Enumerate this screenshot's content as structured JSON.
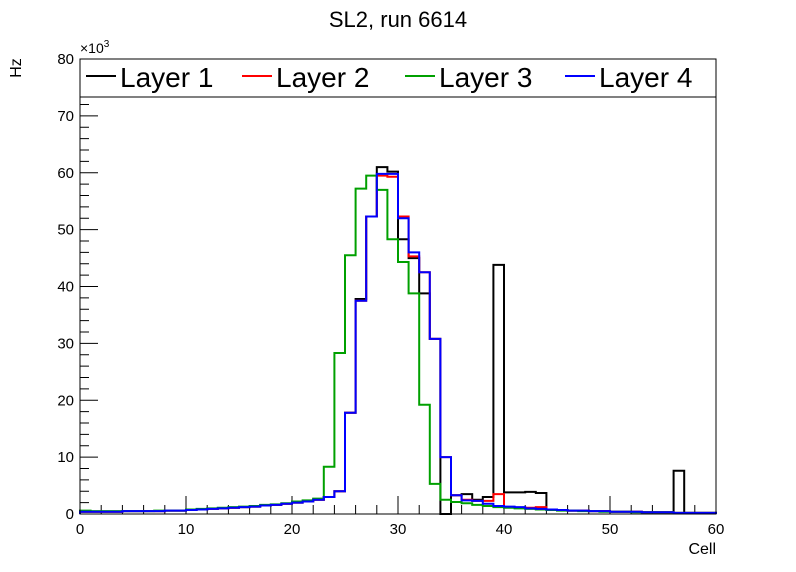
{
  "chart_data": {
    "type": "line",
    "style": "step-histogram",
    "title": "SL2, run 6614",
    "xlabel": "Cell",
    "ylabel": "Hz",
    "y_multiplier_label": "×10",
    "y_multiplier_exp": "3",
    "xlim": [
      0,
      60
    ],
    "ylim": [
      0,
      80
    ],
    "x_ticks": [
      0,
      10,
      20,
      30,
      40,
      50,
      60
    ],
    "y_ticks": [
      0,
      10,
      20,
      30,
      40,
      50,
      60,
      70,
      80
    ],
    "grid": false,
    "legend_placement": "top",
    "bin_width": 1,
    "series": [
      {
        "name": "Layer 1",
        "color": "#000000",
        "values": [
          0.4,
          0.4,
          0.4,
          0.4,
          0.5,
          0.5,
          0.5,
          0.5,
          0.6,
          0.6,
          0.7,
          0.8,
          0.9,
          1.0,
          1.1,
          1.2,
          1.3,
          1.5,
          1.6,
          1.8,
          2.0,
          2.2,
          2.5,
          3.0,
          4.0,
          17.8,
          37.8,
          52.3,
          61.0,
          60.2,
          48.3,
          45.0,
          38.8,
          30.8,
          0.0,
          3.3,
          3.5,
          2.5,
          3.0,
          43.8,
          3.8,
          3.8,
          3.9,
          3.7,
          0.7,
          0.7,
          0.6,
          0.6,
          0.5,
          0.5,
          0.4,
          0.4,
          0.4,
          0.3,
          0.3,
          0.3,
          7.6,
          0.2,
          0.2,
          0.2
        ]
      },
      {
        "name": "Layer 2",
        "color": "#ff0000",
        "values": [
          0.4,
          0.4,
          0.4,
          0.4,
          0.5,
          0.5,
          0.5,
          0.5,
          0.6,
          0.6,
          0.7,
          0.8,
          0.9,
          1.0,
          1.1,
          1.2,
          1.3,
          1.5,
          1.6,
          1.8,
          2.0,
          2.2,
          2.5,
          3.0,
          4.0,
          17.8,
          37.5,
          52.3,
          59.5,
          59.3,
          52.3,
          45.3,
          42.5,
          30.8,
          10.0,
          3.3,
          2.5,
          2.3,
          2.3,
          3.5,
          1.2,
          1.1,
          1.1,
          1.2,
          0.8,
          0.7,
          0.6,
          0.6,
          0.5,
          0.5,
          0.4,
          0.4,
          0.4,
          0.3,
          0.3,
          0.3,
          0.2,
          0.2,
          0.2,
          0.2
        ]
      },
      {
        "name": "Layer 3",
        "color": "#00a000",
        "values": [
          0.6,
          0.5,
          0.5,
          0.5,
          0.5,
          0.5,
          0.5,
          0.6,
          0.6,
          0.6,
          0.8,
          0.9,
          1.0,
          1.1,
          1.2,
          1.3,
          1.4,
          1.6,
          1.7,
          1.9,
          2.2,
          2.4,
          2.7,
          8.3,
          28.3,
          45.5,
          57.2,
          59.5,
          57.0,
          48.3,
          44.3,
          38.8,
          19.2,
          5.3,
          2.5,
          2.1,
          1.9,
          1.6,
          1.4,
          1.2,
          1.1,
          1.0,
          0.9,
          0.8,
          0.7,
          0.6,
          0.6,
          0.5,
          0.5,
          0.4,
          0.4,
          0.4,
          0.3,
          0.3,
          0.3,
          0.3,
          0.2,
          0.2,
          0.2,
          0.2
        ]
      },
      {
        "name": "Layer 4",
        "color": "#0000ff",
        "values": [
          0.4,
          0.4,
          0.4,
          0.4,
          0.5,
          0.5,
          0.5,
          0.5,
          0.6,
          0.6,
          0.7,
          0.8,
          0.9,
          1.0,
          1.1,
          1.2,
          1.3,
          1.5,
          1.6,
          1.8,
          2.0,
          2.2,
          2.5,
          3.0,
          4.0,
          17.8,
          37.5,
          52.3,
          59.8,
          59.8,
          52.0,
          46.0,
          42.5,
          30.8,
          10.0,
          3.3,
          2.4,
          2.3,
          1.8,
          1.4,
          1.3,
          1.2,
          1.0,
          0.9,
          0.8,
          0.7,
          0.6,
          0.6,
          0.5,
          0.5,
          0.4,
          0.4,
          0.4,
          0.3,
          0.3,
          0.3,
          0.2,
          0.2,
          0.2,
          0.2
        ]
      }
    ]
  }
}
